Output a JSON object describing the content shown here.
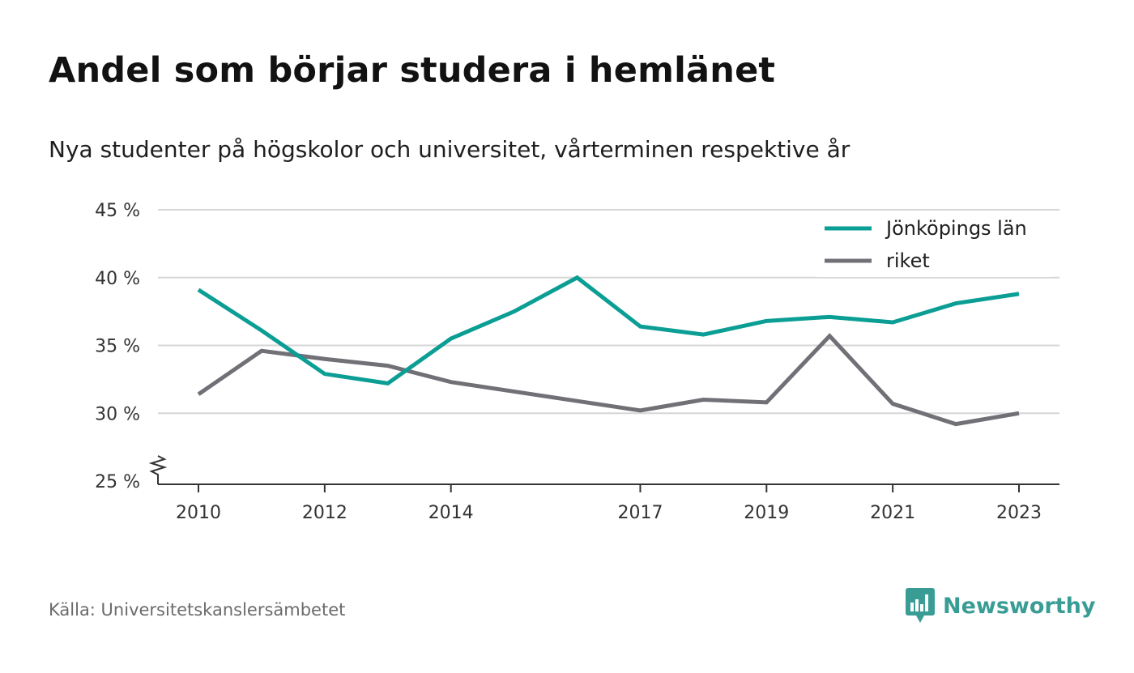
{
  "header": {
    "title": "Andel som börjar studera i hemlänet",
    "subtitle": "Nya studenter på högskolor och universitet, vårterminen respektive år"
  },
  "footer": {
    "source": "Källa: Universitetskanslersämbetet",
    "brand": "Newsworthy",
    "brand_icon": "newsworthy-bar-chart-icon"
  },
  "colors": {
    "series_1": "#0b9e94",
    "series_2": "#717077",
    "grid": "#d6d6d6",
    "axis": "#333333",
    "brand": "#3a9d95"
  },
  "chart_data": {
    "type": "line",
    "x": [
      2010,
      2011,
      2012,
      2013,
      2014,
      2015,
      2016,
      2017,
      2018,
      2019,
      2020,
      2021,
      2022,
      2023
    ],
    "x_ticks": [
      "2010",
      "2012",
      "2014",
      "2017",
      "2019",
      "2021",
      "2023"
    ],
    "y_ticks": [
      "25 %",
      "30 %",
      "35 %",
      "40 %",
      "45 %"
    ],
    "ylim": [
      25,
      45
    ],
    "y_axis_break": true,
    "grid": true,
    "legend_position": "top-right",
    "series": [
      {
        "name": "Jönköpings län",
        "values": [
          39.1,
          36.1,
          32.9,
          32.2,
          35.5,
          37.5,
          40.0,
          36.4,
          35.8,
          36.8,
          37.1,
          36.7,
          38.1,
          38.8
        ]
      },
      {
        "name": "riket",
        "values": [
          31.4,
          34.6,
          34.0,
          33.5,
          32.3,
          31.6,
          30.9,
          30.2,
          31.0,
          30.8,
          35.7,
          30.7,
          29.2,
          30.0
        ]
      }
    ]
  }
}
